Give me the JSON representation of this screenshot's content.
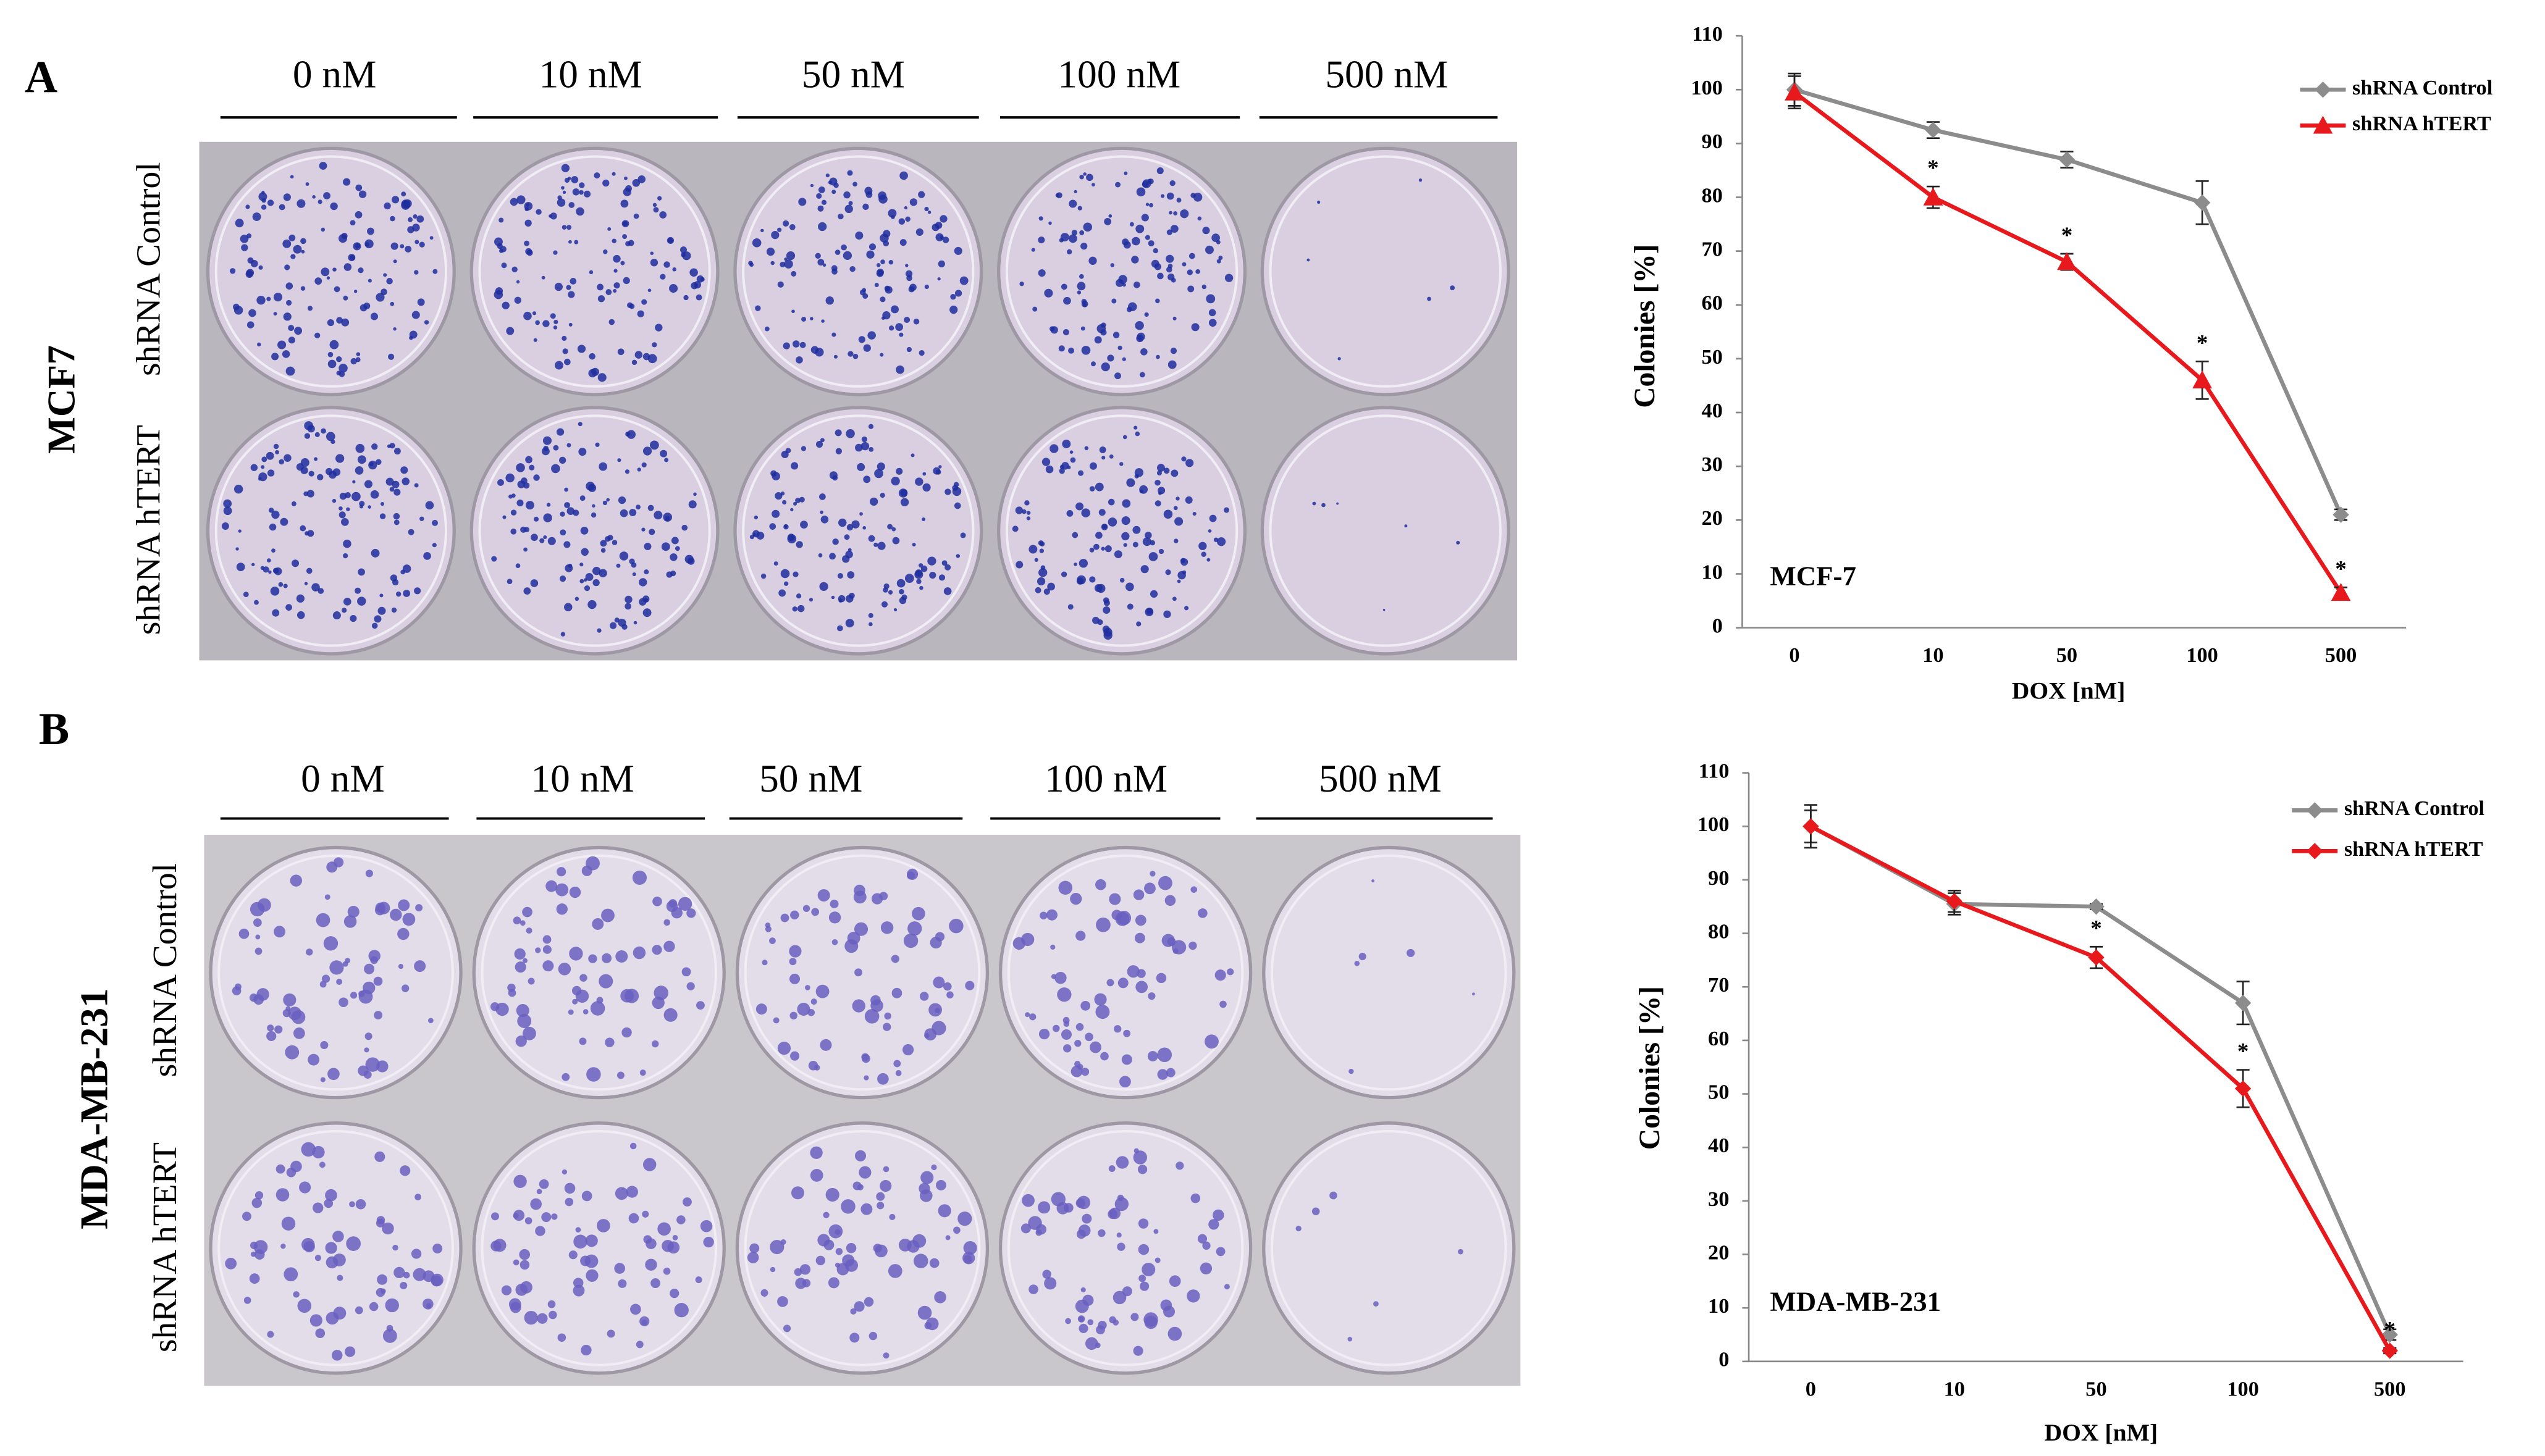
{
  "panels": [
    {
      "label": "A",
      "cell_line": "MCF7",
      "concentrations": [
        "0 nM",
        "10 nM",
        "50 nM",
        "100 nM",
        "500 nM"
      ],
      "rows": [
        "shRNA Control",
        "shRNA hTERT"
      ]
    },
    {
      "label": "B",
      "cell_line": "MDA-MB-231",
      "concentrations": [
        "0 nM",
        "10 nM",
        "50 nM",
        "100 nM",
        "500 nM"
      ],
      "rows": [
        "shRNA Control",
        "shRNA hTERT"
      ]
    }
  ],
  "chart_data": [
    {
      "type": "line",
      "inset_label": "MCF-7",
      "x_label": "DOX [nM]",
      "y_label": "Colonies [%]",
      "categories": [
        "0",
        "10",
        "50",
        "100",
        "500"
      ],
      "ylim": [
        0,
        110
      ],
      "yticks": [
        0,
        10,
        20,
        30,
        40,
        50,
        60,
        70,
        80,
        90,
        100,
        110
      ],
      "legend": "top-right",
      "series": [
        {
          "name": "shRNA Control",
          "color": "#8c8c8c",
          "marker": "diamond",
          "values": [
            100,
            92.5,
            87,
            79,
            21
          ],
          "errors": [
            3,
            1.5,
            1.5,
            4,
            1
          ]
        },
        {
          "name": "shRNA hTERT",
          "color": "#e8191c",
          "marker": "triangle",
          "values": [
            99.5,
            80,
            68,
            46,
            6.5
          ],
          "errors": [
            3,
            2,
            1.5,
            3.5,
            1
          ],
          "annotations": [
            null,
            "*",
            "*",
            "*",
            "*"
          ]
        }
      ]
    },
    {
      "type": "line",
      "inset_label": "MDA-MB-231",
      "x_label": "DOX [nM]",
      "y_label": "Colonies [%]",
      "categories": [
        "0",
        "10",
        "50",
        "100",
        "500"
      ],
      "ylim": [
        0,
        110
      ],
      "yticks": [
        0,
        10,
        20,
        30,
        40,
        50,
        60,
        70,
        80,
        90,
        100,
        110
      ],
      "legend": "top-right",
      "series": [
        {
          "name": "shRNA Control",
          "color": "#8c8c8c",
          "marker": "diamond",
          "values": [
            100,
            85.5,
            85,
            67,
            5
          ],
          "errors": [
            4,
            2,
            0.5,
            4,
            1
          ]
        },
        {
          "name": "shRNA hTERT",
          "color": "#e8191c",
          "marker": "diamond",
          "values": [
            100,
            86,
            75.5,
            51,
            2
          ],
          "errors": [
            3,
            2,
            2,
            3.5,
            0.5
          ],
          "annotations": [
            null,
            null,
            "*",
            "*",
            "*"
          ]
        }
      ]
    }
  ]
}
